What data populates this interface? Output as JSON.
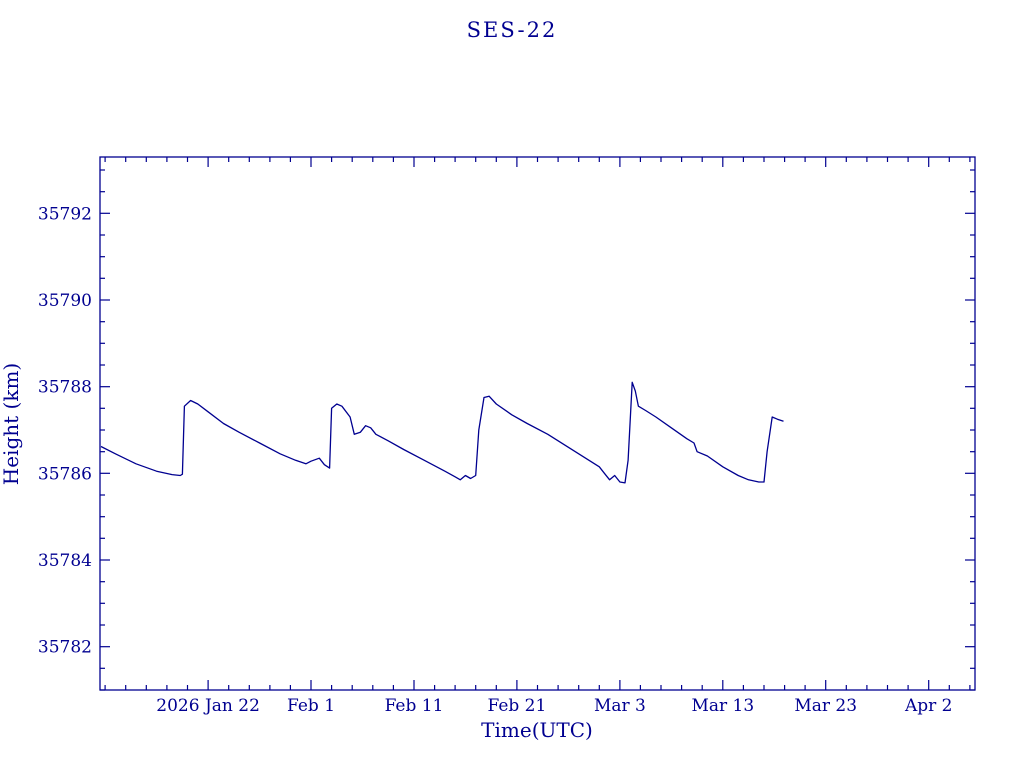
{
  "page": {
    "background": "#ffffff"
  },
  "chart_data": {
    "type": "line",
    "title": "SES-22",
    "xlabel": "Time(UTC)",
    "ylabel": "Height (km)",
    "legend": "none",
    "grid": false,
    "line_color": "#000090",
    "axis_color": "#000090",
    "text_color": "#000090",
    "x_unit": "day_of_year_2026",
    "xlim": [
      11.5,
      96.5
    ],
    "ylim": [
      35781.0,
      35793.3
    ],
    "x_major_ticks": [
      {
        "value": 22,
        "label": "2026 Jan 22"
      },
      {
        "value": 32,
        "label": "Feb  1"
      },
      {
        "value": 42,
        "label": "Feb 11"
      },
      {
        "value": 52,
        "label": "Feb 21"
      },
      {
        "value": 62,
        "label": "Mar  3"
      },
      {
        "value": 72,
        "label": "Mar 13"
      },
      {
        "value": 82,
        "label": "Mar 23"
      },
      {
        "value": 92,
        "label": "Apr  2"
      }
    ],
    "x_minor_step": 2,
    "y_major_ticks": [
      {
        "value": 35782,
        "label": "35782"
      },
      {
        "value": 35784,
        "label": "35784"
      },
      {
        "value": 35786,
        "label": "35786"
      },
      {
        "value": 35788,
        "label": "35788"
      },
      {
        "value": 35790,
        "label": "35790"
      },
      {
        "value": 35792,
        "label": "35792"
      }
    ],
    "y_minor_step": 0.5,
    "series": [
      {
        "name": "SES-22 height",
        "points": [
          [
            11.6,
            35786.62
          ],
          [
            13.0,
            35786.45
          ],
          [
            15.0,
            35786.22
          ],
          [
            17.0,
            35786.05
          ],
          [
            18.5,
            35785.97
          ],
          [
            19.3,
            35785.95
          ],
          [
            19.5,
            35785.98
          ],
          [
            19.7,
            35787.55
          ],
          [
            20.3,
            35787.68
          ],
          [
            21.0,
            35787.6
          ],
          [
            22.0,
            35787.42
          ],
          [
            23.5,
            35787.15
          ],
          [
            25.0,
            35786.95
          ],
          [
            27.0,
            35786.7
          ],
          [
            29.0,
            35786.45
          ],
          [
            30.5,
            35786.3
          ],
          [
            31.5,
            35786.22
          ],
          [
            32.0,
            35786.28
          ],
          [
            32.8,
            35786.35
          ],
          [
            33.3,
            35786.2
          ],
          [
            33.8,
            35786.12
          ],
          [
            34.0,
            35787.5
          ],
          [
            34.5,
            35787.6
          ],
          [
            35.0,
            35787.55
          ],
          [
            35.8,
            35787.3
          ],
          [
            36.2,
            35786.9
          ],
          [
            36.8,
            35786.95
          ],
          [
            37.3,
            35787.1
          ],
          [
            37.8,
            35787.05
          ],
          [
            38.3,
            35786.9
          ],
          [
            39.5,
            35786.75
          ],
          [
            41.0,
            35786.55
          ],
          [
            43.0,
            35786.3
          ],
          [
            45.0,
            35786.05
          ],
          [
            46.0,
            35785.92
          ],
          [
            46.5,
            35785.85
          ],
          [
            47.0,
            35785.95
          ],
          [
            47.5,
            35785.88
          ],
          [
            48.0,
            35785.95
          ],
          [
            48.3,
            35787.0
          ],
          [
            48.8,
            35787.75
          ],
          [
            49.3,
            35787.78
          ],
          [
            50.0,
            35787.6
          ],
          [
            51.5,
            35787.35
          ],
          [
            53.0,
            35787.15
          ],
          [
            55.0,
            35786.9
          ],
          [
            57.0,
            35786.6
          ],
          [
            59.0,
            35786.3
          ],
          [
            60.0,
            35786.15
          ],
          [
            60.5,
            35786.0
          ],
          [
            61.0,
            35785.85
          ],
          [
            61.5,
            35785.95
          ],
          [
            62.0,
            35785.8
          ],
          [
            62.5,
            35785.78
          ],
          [
            62.8,
            35786.3
          ],
          [
            63.2,
            35788.1
          ],
          [
            63.5,
            35787.9
          ],
          [
            63.8,
            35787.55
          ],
          [
            64.5,
            35787.45
          ],
          [
            65.5,
            35787.3
          ],
          [
            67.0,
            35787.05
          ],
          [
            68.5,
            35786.8
          ],
          [
            69.2,
            35786.7
          ],
          [
            69.5,
            35786.5
          ],
          [
            70.5,
            35786.4
          ],
          [
            72.0,
            35786.15
          ],
          [
            73.5,
            35785.95
          ],
          [
            74.5,
            35785.85
          ],
          [
            75.5,
            35785.8
          ],
          [
            76.0,
            35785.8
          ],
          [
            76.3,
            35786.5
          ],
          [
            76.8,
            35787.3
          ],
          [
            77.3,
            35787.25
          ],
          [
            77.9,
            35787.2
          ]
        ]
      }
    ]
  }
}
